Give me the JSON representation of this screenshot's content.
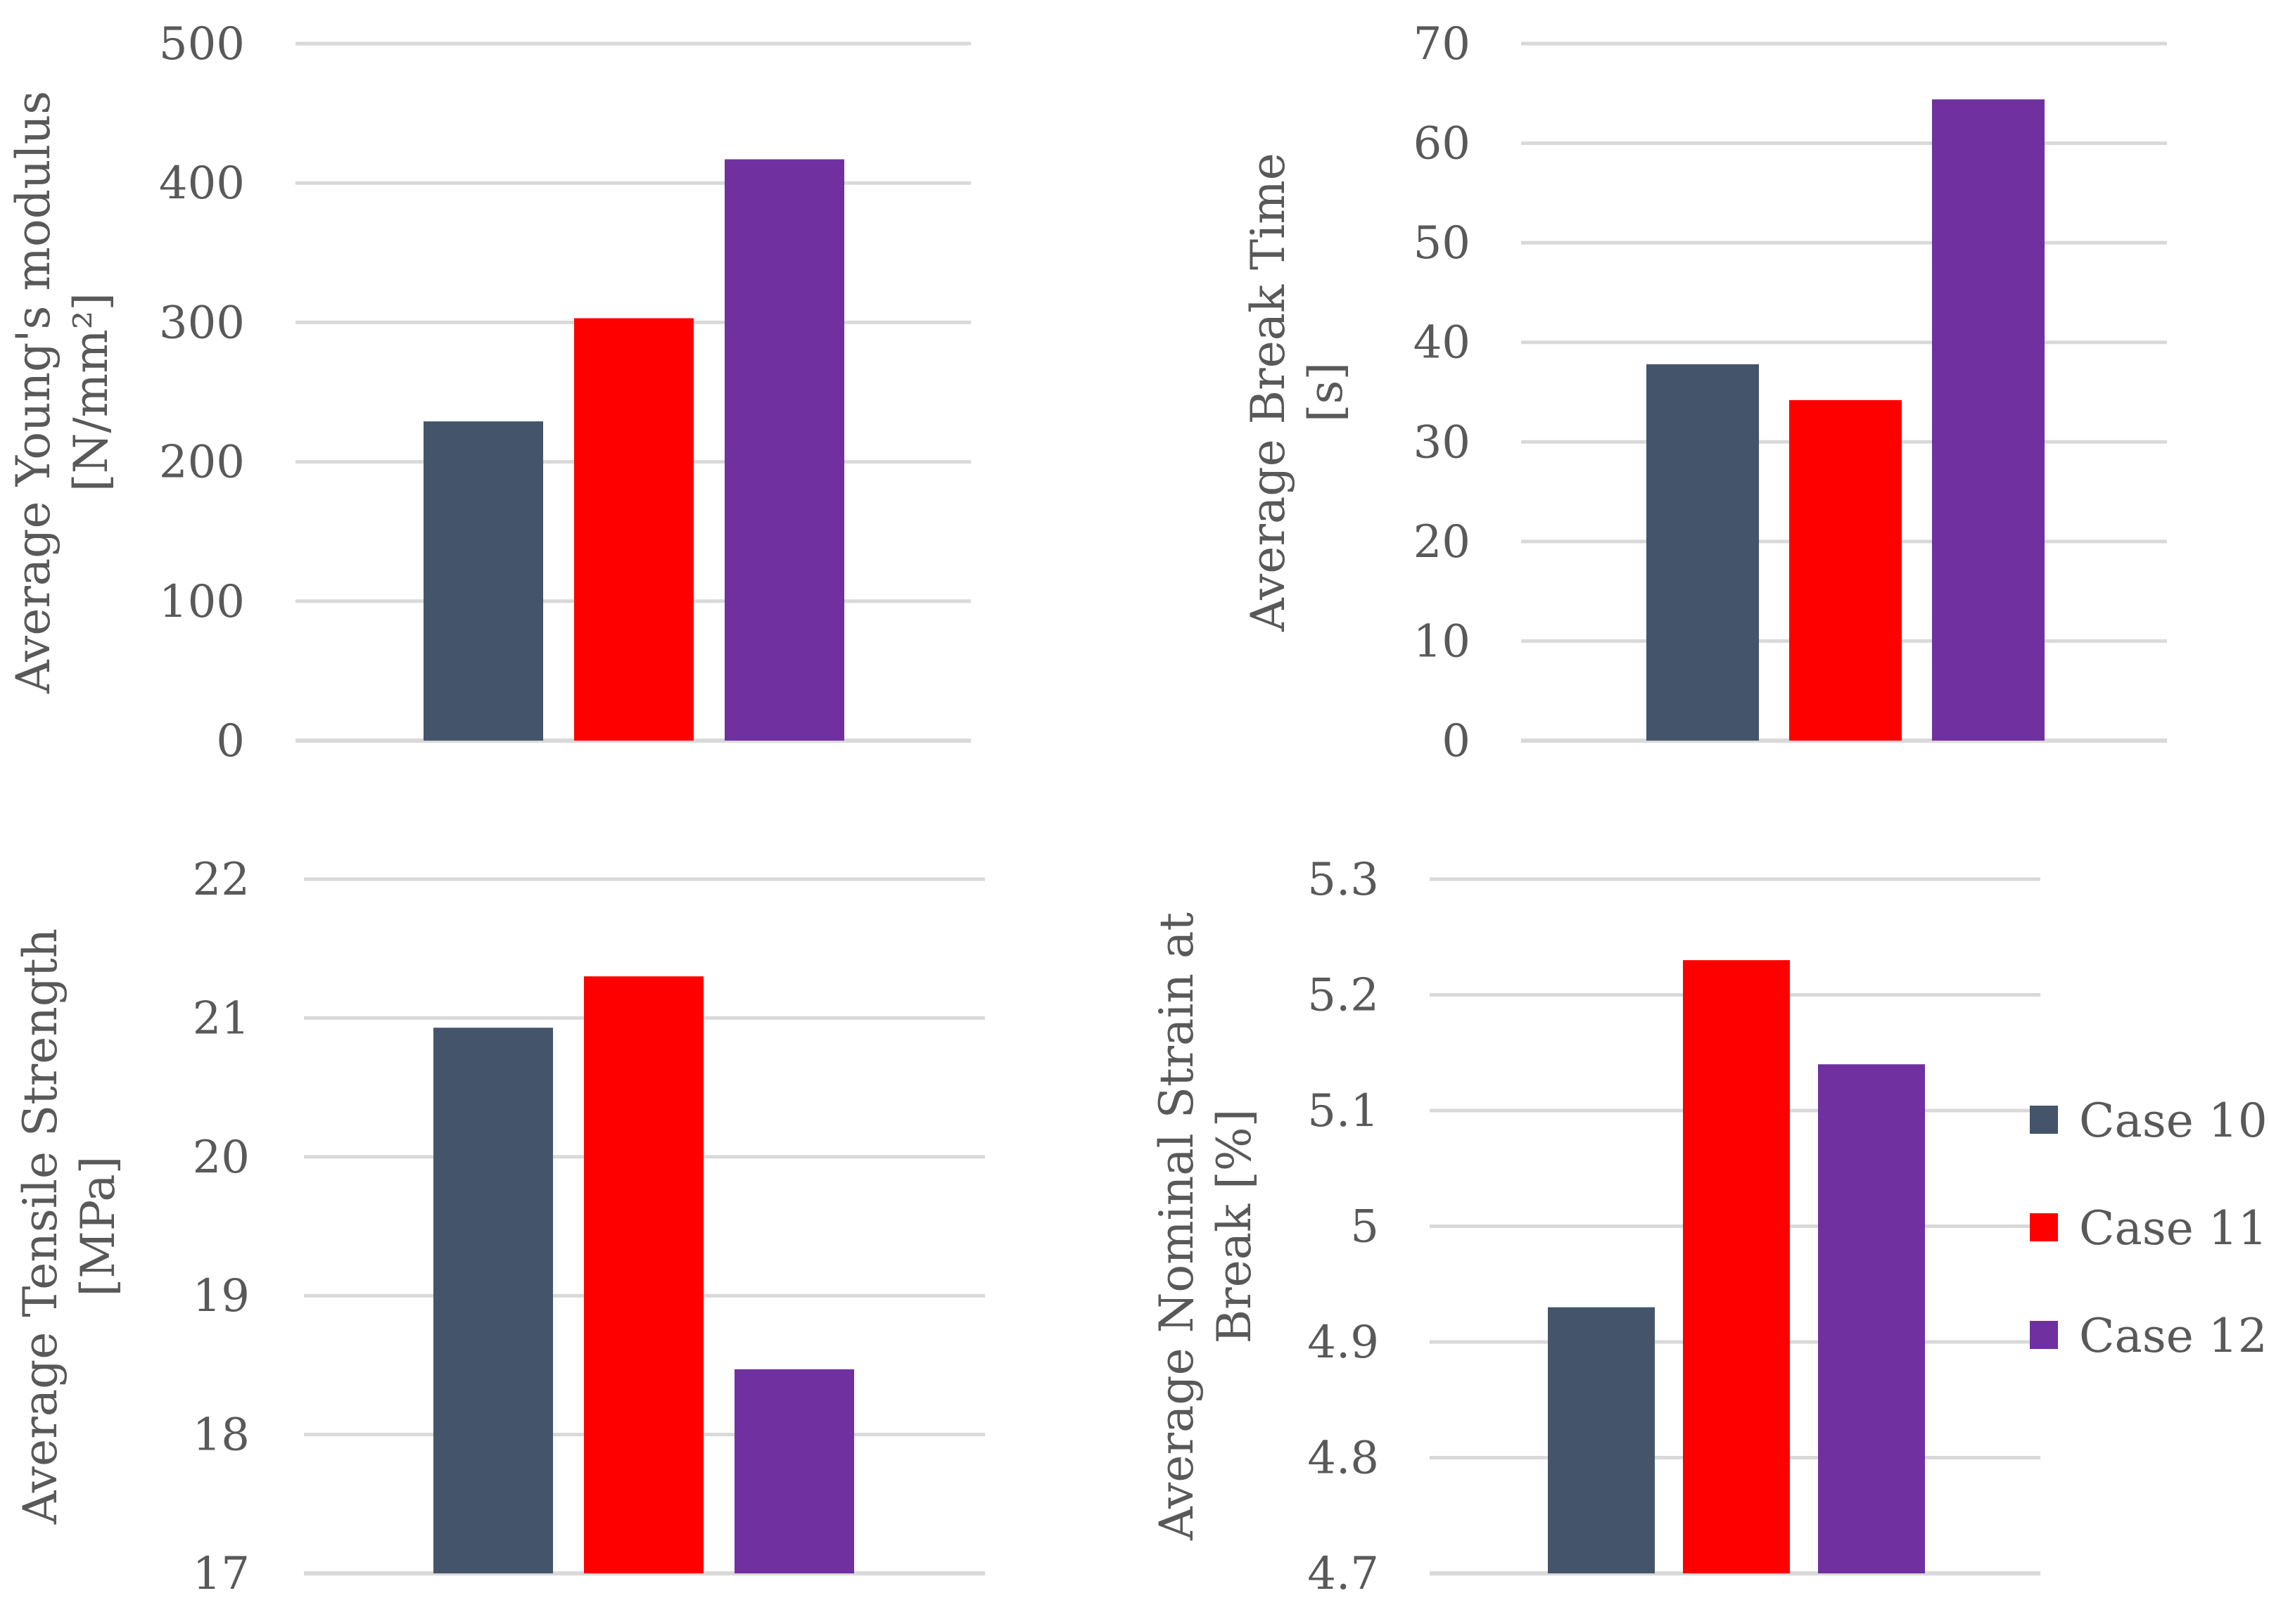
{
  "legend": {
    "position": "right",
    "items": [
      {
        "label": "Case 10",
        "color": "#44546A"
      },
      {
        "label": "Case 11",
        "color": "#FF0000"
      },
      {
        "label": "Case 12",
        "color": "#7030A0"
      }
    ]
  },
  "chart_data": [
    {
      "type": "bar",
      "categories": [
        "Case 10",
        "Case 11",
        "Case 12"
      ],
      "values": [
        229,
        303,
        417
      ],
      "ylabel": [
        "Average Young's modulus",
        "[N/mm²]"
      ],
      "ylim": [
        0,
        500
      ],
      "yticks": [
        "0",
        "100",
        "200",
        "300",
        "400",
        "500"
      ],
      "grid": true,
      "colors": [
        "#44546A",
        "#FF0000",
        "#7030A0"
      ]
    },
    {
      "type": "bar",
      "categories": [
        "Case 10",
        "Case 11",
        "Case 12"
      ],
      "values": [
        37.8,
        34.2,
        64.4
      ],
      "ylabel": [
        "Average Break Time",
        "[s]"
      ],
      "ylim": [
        0,
        70
      ],
      "yticks": [
        "0",
        "10",
        "20",
        "30",
        "40",
        "50",
        "60",
        "70"
      ],
      "grid": true,
      "colors": [
        "#44546A",
        "#FF0000",
        "#7030A0"
      ]
    },
    {
      "type": "bar",
      "categories": [
        "Case 10",
        "Case 11",
        "Case 12"
      ],
      "values": [
        20.93,
        21.3,
        18.47
      ],
      "ylabel": [
        "Average Tensile Strength",
        "[MPa]"
      ],
      "ylim": [
        17,
        22
      ],
      "yticks": [
        "17",
        "18",
        "19",
        "20",
        "21",
        "22"
      ],
      "grid": true,
      "colors": [
        "#44546A",
        "#FF0000",
        "#7030A0"
      ]
    },
    {
      "type": "bar",
      "categories": [
        "Case 10",
        "Case 11",
        "Case 12"
      ],
      "values": [
        4.93,
        5.23,
        5.14
      ],
      "ylabel": [
        "Average Nominal Strain at",
        "Break [%]"
      ],
      "ylim": [
        4.7,
        5.3
      ],
      "yticks": [
        "4.7",
        "4.8",
        "4.9",
        "5",
        "5.1",
        "5.2",
        "5.3"
      ],
      "grid": true,
      "colors": [
        "#44546A",
        "#FF0000",
        "#7030A0"
      ]
    }
  ]
}
